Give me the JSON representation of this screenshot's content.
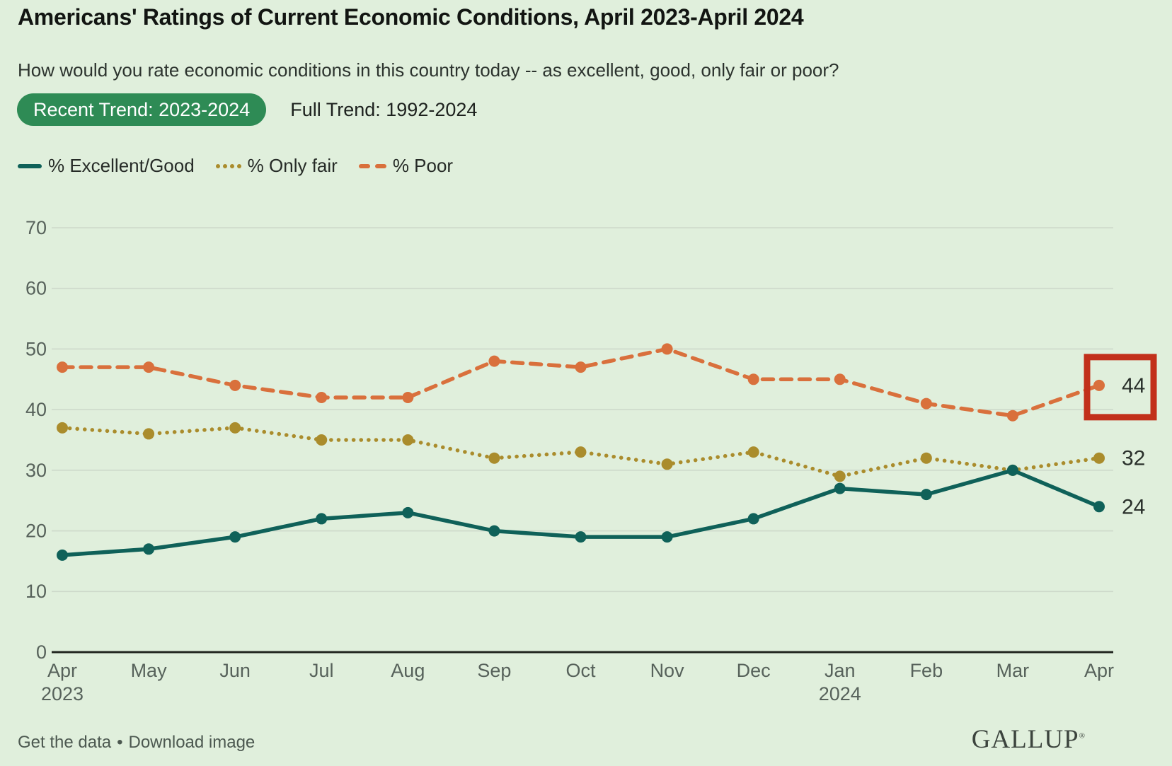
{
  "header": {
    "title": "Americans' Ratings of Current Economic Conditions, April 2023-April 2024",
    "subtitle": "How would you rate economic conditions in this country today -- as excellent, good, only fair or poor?"
  },
  "tabs": {
    "recent": {
      "label": "Recent Trend: 2023-2024",
      "selected": true,
      "color": "#2e8b55"
    },
    "full": {
      "label": "Full Trend: 1992-2024",
      "selected": false
    }
  },
  "footer": {
    "get_data_label": "Get the data",
    "separator": "•",
    "download_label": "Download image",
    "logo": "GALLUP",
    "logo_mark": "®"
  },
  "colors": {
    "background": "#e0efdc",
    "gridline": "#cdd9ca",
    "axis": "#21261f",
    "tick_text": "#57625b",
    "end_label_text": "#2a302b",
    "annotation_box": "#c2301b"
  },
  "chart_data": {
    "type": "line",
    "title": "Americans' Ratings of Current Economic Conditions, April 2023-April 2024",
    "xlabel": "",
    "ylabel": "",
    "ylim": [
      0,
      70
    ],
    "yticks": [
      0,
      10,
      20,
      30,
      40,
      50,
      60,
      70
    ],
    "grid": true,
    "legend_position": "top",
    "x_labels": [
      {
        "month": "Apr",
        "year": "2023"
      },
      {
        "month": "May"
      },
      {
        "month": "Jun"
      },
      {
        "month": "Jul"
      },
      {
        "month": "Aug"
      },
      {
        "month": "Sep"
      },
      {
        "month": "Oct"
      },
      {
        "month": "Nov"
      },
      {
        "month": "Dec"
      },
      {
        "month": "Jan",
        "year": "2024"
      },
      {
        "month": "Feb"
      },
      {
        "month": "Mar"
      },
      {
        "month": "Apr"
      }
    ],
    "series": [
      {
        "name": "% Poor",
        "style": "dashed",
        "color": "#d9703c",
        "values": [
          47,
          47,
          44,
          42,
          42,
          48,
          47,
          50,
          45,
          45,
          41,
          39,
          44
        ],
        "end_label": "44"
      },
      {
        "name": "% Only fair",
        "style": "dotted",
        "color": "#aa8c2c",
        "values": [
          37,
          36,
          37,
          35,
          35,
          32,
          33,
          31,
          33,
          29,
          32,
          30,
          32
        ],
        "end_label": "32"
      },
      {
        "name": "% Excellent/Good",
        "style": "solid",
        "color": "#0f6159",
        "values": [
          16,
          17,
          19,
          22,
          23,
          20,
          19,
          19,
          22,
          27,
          26,
          30,
          24
        ],
        "end_label": "24"
      }
    ],
    "annotation_box": {
      "series": "% Poor",
      "category_index": 12,
      "value": 44,
      "border_color": "#c2301b"
    }
  }
}
